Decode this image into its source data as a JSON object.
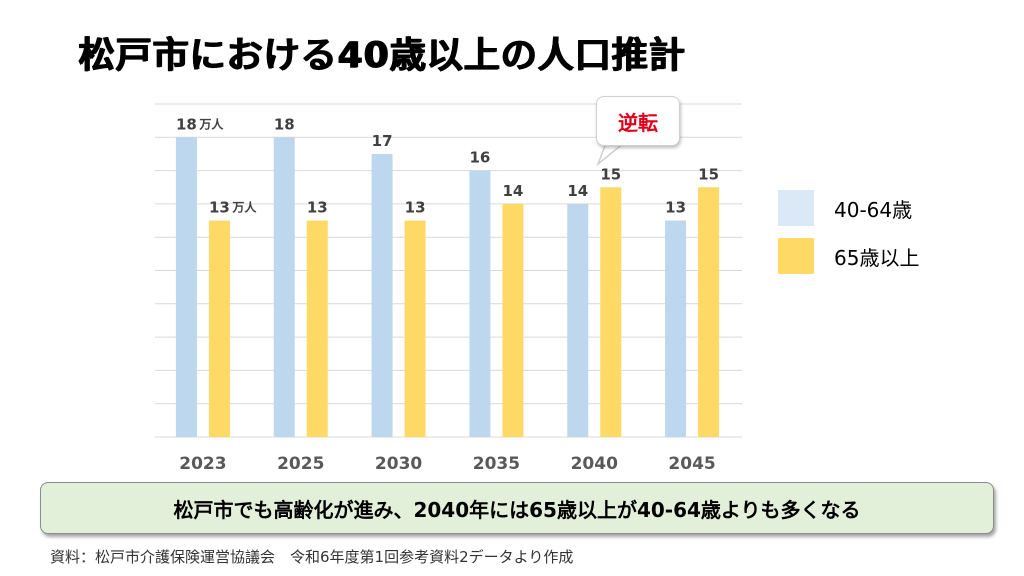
{
  "title": "松戸市における40歳以上の人口推計",
  "callout": "逆転",
  "conclusion": "松戸市でも高齢化が進み、2040年には65歳以上が40-64歳よりも多くなる",
  "source": "資料：松戸市介護保険運営協議会　令和6年度第1回参考資料2データより作成",
  "chart_data": {
    "type": "bar",
    "title": "松戸市における40歳以上の人口推計",
    "categories": [
      "2023",
      "2025",
      "2030",
      "2035",
      "2040",
      "2045"
    ],
    "series": [
      {
        "name": "40-64歳",
        "values": [
          18,
          18,
          17,
          16,
          14,
          13
        ],
        "color": "#bdd7ee"
      },
      {
        "name": "65歳以上",
        "values": [
          13,
          13,
          13,
          14,
          15,
          15
        ],
        "color": "#ffd966"
      }
    ],
    "value_labels": [
      [
        "18",
        "18",
        "17",
        "16",
        "14",
        "13"
      ],
      [
        "13",
        "13",
        "13",
        "14",
        "15",
        "15"
      ]
    ],
    "unit_label": "万人",
    "ylim": [
      0,
      20
    ],
    "grid": true,
    "legend_position": "right",
    "xlabel": "",
    "ylabel": ""
  },
  "colors": {
    "grid": "#d9d9d9",
    "axis_text": "#595959",
    "callout_text": "#e0001a",
    "conclusion_bg": "#e2efd9"
  }
}
